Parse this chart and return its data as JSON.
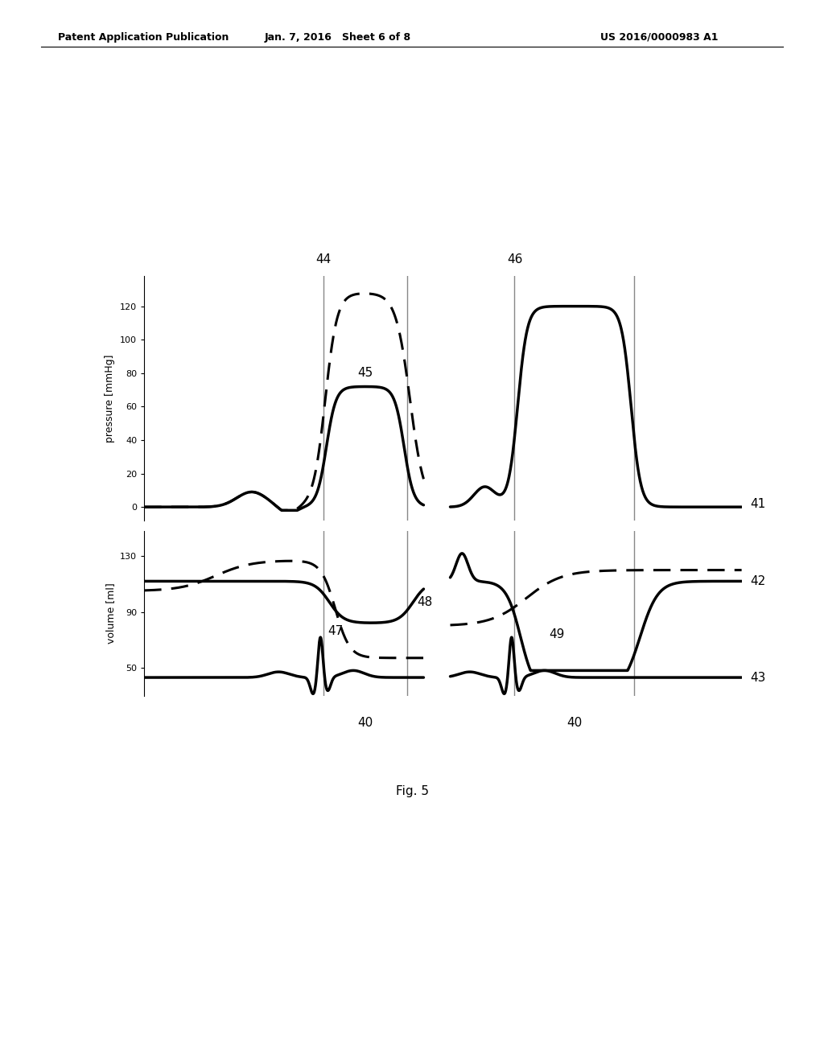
{
  "header_left": "Patent Application Publication",
  "header_mid": "Jan. 7, 2016   Sheet 6 of 8",
  "header_right": "US 2016/0000983 A1",
  "figure_label": "Fig. 5",
  "background_color": "#ffffff",
  "pressure_ylabel": "pressure [mmHg]",
  "pressure_yticks": [
    0,
    20,
    40,
    60,
    80,
    100,
    120
  ],
  "volume_ylabel": "volume [ml]",
  "volume_yticks": [
    50,
    90,
    130
  ],
  "label_41": "41",
  "label_42": "42",
  "label_43": "43",
  "label_44": "44",
  "label_45": "45",
  "label_46": "46",
  "label_47": "47",
  "label_48": "48",
  "label_49": "49",
  "label_40": "40",
  "lw_main": 2.5,
  "lw_dash": 2.2,
  "vline_color": "#888888",
  "vline_lw": 1.0
}
